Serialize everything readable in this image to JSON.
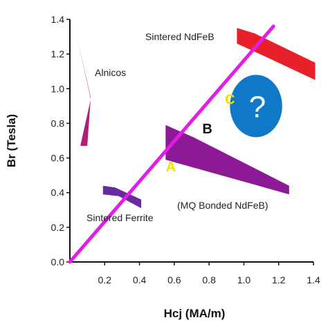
{
  "chart_data": {
    "type": "area",
    "xlabel": "Hcj (MA/m)",
    "ylabel": "Br (Tesla)",
    "xlim": [
      0,
      1.4
    ],
    "ylim": [
      0,
      1.4
    ],
    "x_ticks": [
      "0.2",
      "0.4",
      "0.6",
      "0.8",
      "1.0",
      "1.2",
      "1.4"
    ],
    "y_ticks": [
      "0.0",
      "0.2",
      "0.4",
      "0.6",
      "0.8",
      "1.0",
      "1.2",
      "1.4"
    ],
    "grid": false,
    "regions": [
      {
        "label": "Alnicos",
        "color": "#b01e78",
        "points": [
          [
            0.04,
            1.3
          ],
          [
            0.12,
            0.94
          ],
          [
            0.06,
            0.67
          ],
          [
            0.1,
            0.67
          ],
          [
            0.12,
            0.95
          ]
        ]
      },
      {
        "label": "Sintered NdFeB",
        "color": "#e8202a",
        "points": [
          [
            0.96,
            1.35
          ],
          [
            1.06,
            1.32
          ],
          [
            1.41,
            1.15
          ],
          [
            1.41,
            1.05
          ],
          [
            1.07,
            1.21
          ],
          [
            0.96,
            1.26
          ]
        ]
      },
      {
        "label": "(MQ Bonded NdFeB)",
        "color": "#8c1a96",
        "points": [
          [
            0.55,
            0.79
          ],
          [
            0.71,
            0.72
          ],
          [
            1.26,
            0.44
          ],
          [
            1.26,
            0.39
          ],
          [
            0.55,
            0.59
          ]
        ]
      },
      {
        "label": "Sintered Ferrite",
        "color": "#6a2aa0",
        "points": [
          [
            0.19,
            0.44
          ],
          [
            0.26,
            0.43
          ],
          [
            0.41,
            0.36
          ],
          [
            0.41,
            0.31
          ],
          [
            0.28,
            0.38
          ],
          [
            0.19,
            0.39
          ]
        ]
      }
    ],
    "trend_line": {
      "color": "#e11ee8",
      "points": [
        [
          0.0,
          0.0
        ],
        [
          1.17,
          1.36
        ]
      ]
    },
    "ellipse": {
      "color": "#0f78c8",
      "label": "?",
      "center": [
        1.07,
        0.9
      ],
      "rx": 0.15,
      "ry": 0.18
    },
    "markers": [
      {
        "label": "A",
        "color": "#f0e000",
        "x": 0.58,
        "y": 0.55
      },
      {
        "label": "B",
        "color": "#111111",
        "x": 0.79,
        "y": 0.77
      },
      {
        "label": "C",
        "color": "#f0e000",
        "x": 0.92,
        "y": 0.94
      }
    ]
  }
}
